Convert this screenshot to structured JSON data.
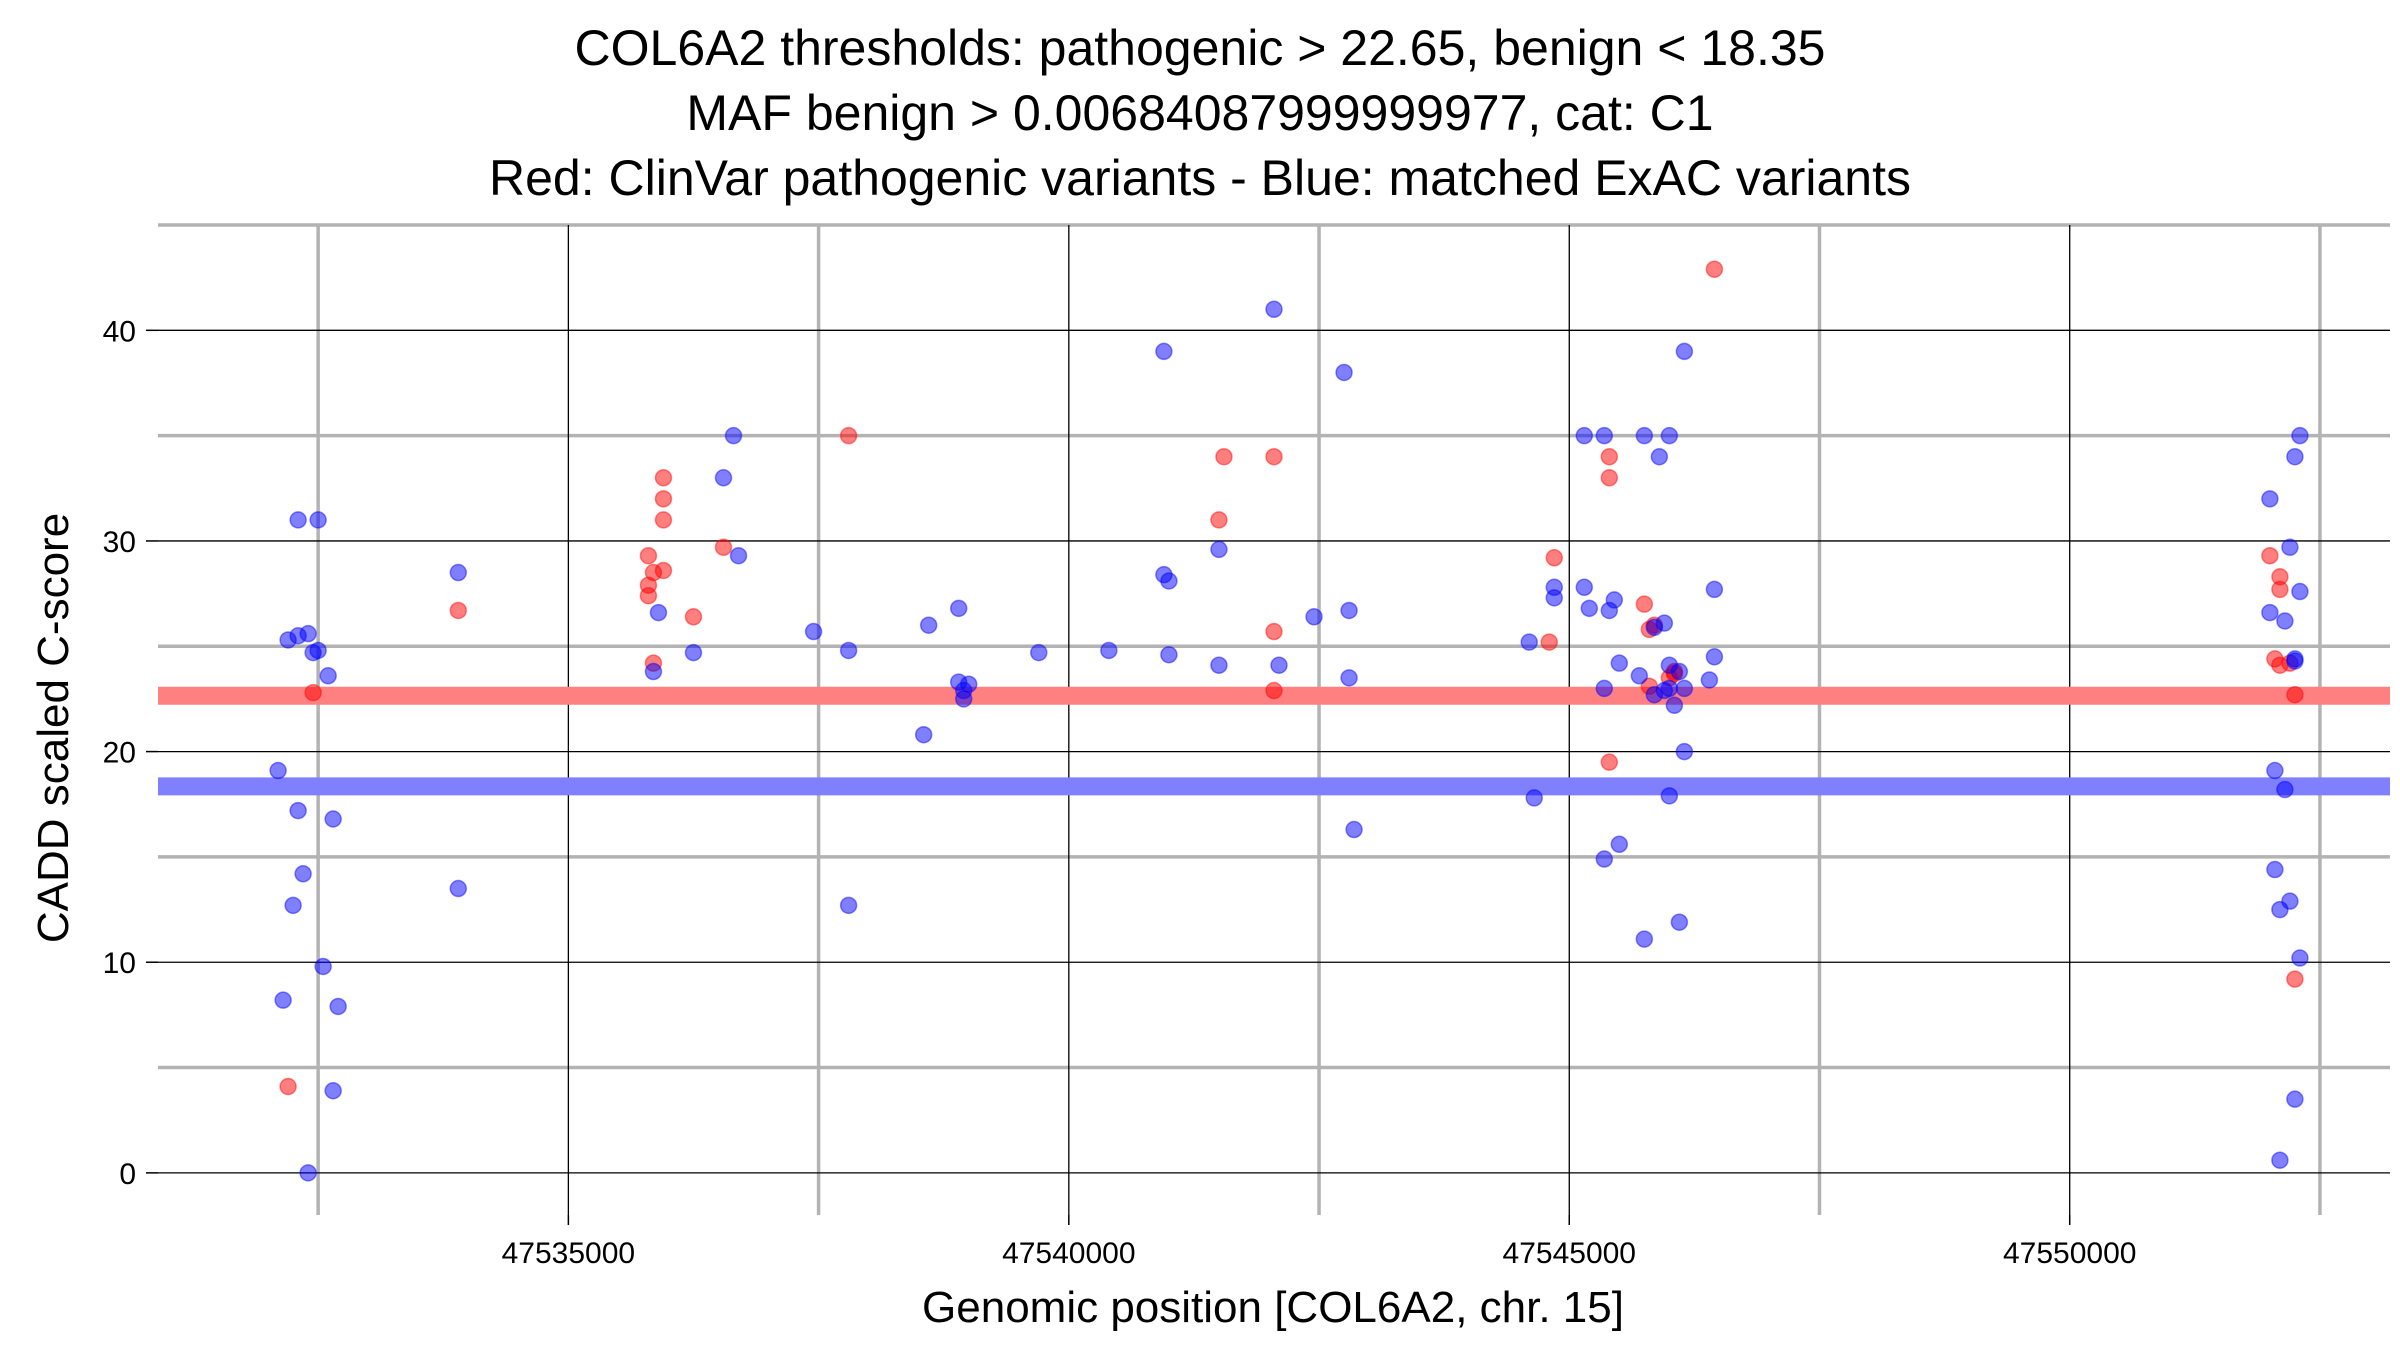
{
  "chart_data": {
    "type": "scatter",
    "title_lines": [
      "COL6A2 thresholds: pathogenic > 22.65, benign < 18.35",
      "MAF benign > 0.00684087999999977, cat: C1",
      "Red: ClinVar pathogenic variants - Blue: matched ExAC variants"
    ],
    "xlabel": "Genomic position [COL6A2, chr. 15]",
    "ylabel": "CADD scaled C-score",
    "xlim": [
      47530900,
      47553200
    ],
    "ylim": [
      -2,
      45
    ],
    "x_ticks": [
      47535000,
      47540000,
      47545000,
      47550000
    ],
    "x_tick_labels": [
      "47535000",
      "47540000",
      "47545000",
      "47550000"
    ],
    "y_ticks": [
      0,
      10,
      20,
      30,
      40
    ],
    "y_tick_labels": [
      "0",
      "10",
      "20",
      "30",
      "40"
    ],
    "x_minor_gridlines": [
      47532500,
      47537500,
      47542500,
      47547500,
      47552500
    ],
    "y_minor_gridlines": [
      5,
      15,
      25,
      35,
      45
    ],
    "thresholds": [
      {
        "name": "pathogenic",
        "value": 22.65,
        "color": "#ff8080"
      },
      {
        "name": "benign",
        "value": 18.35,
        "color": "#8080ff"
      }
    ],
    "series": [
      {
        "name": "ClinVar pathogenic variants",
        "color": "#ff0000",
        "points": [
          [
            47532200,
            4.1
          ],
          [
            47532450,
            22.8
          ],
          [
            47533900,
            26.7
          ],
          [
            47535800,
            29.3
          ],
          [
            47535800,
            27.9
          ],
          [
            47535800,
            27.4
          ],
          [
            47535850,
            28.5
          ],
          [
            47535850,
            24.2
          ],
          [
            47535950,
            28.6
          ],
          [
            47535950,
            33
          ],
          [
            47535950,
            32
          ],
          [
            47535950,
            31
          ],
          [
            47536250,
            26.4
          ],
          [
            47536550,
            29.7
          ],
          [
            47537800,
            35
          ],
          [
            47541500,
            31
          ],
          [
            47541550,
            34
          ],
          [
            47542050,
            34
          ],
          [
            47542050,
            25.7
          ],
          [
            47542050,
            22.9
          ],
          [
            47544850,
            29.2
          ],
          [
            47544800,
            25.2
          ],
          [
            47545400,
            34
          ],
          [
            47545400,
            33
          ],
          [
            47545400,
            19.5
          ],
          [
            47545750,
            27
          ],
          [
            47545800,
            25.8
          ],
          [
            47545850,
            26
          ],
          [
            47545800,
            23.1
          ],
          [
            47546000,
            23.5
          ],
          [
            47546050,
            23.7
          ],
          [
            47546050,
            23.8
          ],
          [
            47546450,
            42.9
          ],
          [
            47552000,
            29.3
          ],
          [
            47552050,
            24.4
          ],
          [
            47552100,
            28.3
          ],
          [
            47552100,
            27.7
          ],
          [
            47552100,
            24.1
          ],
          [
            47552200,
            24.2
          ],
          [
            47552250,
            22.7
          ],
          [
            47552250,
            9.2
          ]
        ]
      },
      {
        "name": "matched ExAC variants",
        "color": "#0000ff",
        "points": [
          [
            47532100,
            19.1
          ],
          [
            47532150,
            8.2
          ],
          [
            47532200,
            25.3
          ],
          [
            47532250,
            12.7
          ],
          [
            47532300,
            25.5
          ],
          [
            47532300,
            17.2
          ],
          [
            47532300,
            31
          ],
          [
            47532350,
            14.2
          ],
          [
            47532400,
            25.6
          ],
          [
            47532400,
            0
          ],
          [
            47532450,
            24.7
          ],
          [
            47532500,
            24.8
          ],
          [
            47532500,
            31
          ],
          [
            47532550,
            9.8
          ],
          [
            47532600,
            23.6
          ],
          [
            47532650,
            16.8
          ],
          [
            47532650,
            3.9
          ],
          [
            47532700,
            7.9
          ],
          [
            47533900,
            28.5
          ],
          [
            47533900,
            13.5
          ],
          [
            47535850,
            23.8
          ],
          [
            47535900,
            26.6
          ],
          [
            47536250,
            24.7
          ],
          [
            47536550,
            33
          ],
          [
            47536650,
            35
          ],
          [
            47536700,
            29.3
          ],
          [
            47537450,
            25.7
          ],
          [
            47537800,
            24.8
          ],
          [
            47537800,
            12.7
          ],
          [
            47538550,
            20.8
          ],
          [
            47538600,
            26
          ],
          [
            47538900,
            26.8
          ],
          [
            47538900,
            23.3
          ],
          [
            47538950,
            22.9
          ],
          [
            47538950,
            22.5
          ],
          [
            47539000,
            23.2
          ],
          [
            47539700,
            24.7
          ],
          [
            47540400,
            24.8
          ],
          [
            47540950,
            39
          ],
          [
            47540950,
            28.4
          ],
          [
            47541000,
            28.1
          ],
          [
            47541000,
            24.6
          ],
          [
            47541500,
            29.6
          ],
          [
            47541500,
            24.1
          ],
          [
            47542050,
            41
          ],
          [
            47542100,
            24.1
          ],
          [
            47542450,
            26.4
          ],
          [
            47542750,
            38
          ],
          [
            47542800,
            26.7
          ],
          [
            47542800,
            23.5
          ],
          [
            47542850,
            16.3
          ],
          [
            47544600,
            25.2
          ],
          [
            47544650,
            17.8
          ],
          [
            47544850,
            27.8
          ],
          [
            47544850,
            27.3
          ],
          [
            47545150,
            35
          ],
          [
            47545150,
            27.8
          ],
          [
            47545200,
            26.8
          ],
          [
            47545350,
            35
          ],
          [
            47545350,
            23
          ],
          [
            47545350,
            14.9
          ],
          [
            47545400,
            26.7
          ],
          [
            47545450,
            27.2
          ],
          [
            47545500,
            24.2
          ],
          [
            47545500,
            15.6
          ],
          [
            47545700,
            23.6
          ],
          [
            47545750,
            35
          ],
          [
            47545750,
            11.1
          ],
          [
            47545850,
            25.9
          ],
          [
            47545850,
            22.7
          ],
          [
            47545900,
            34
          ],
          [
            47545950,
            22.9
          ],
          [
            47545950,
            26.1
          ],
          [
            47546000,
            35
          ],
          [
            47546000,
            24.1
          ],
          [
            47546000,
            23
          ],
          [
            47546000,
            17.9
          ],
          [
            47546050,
            22.2
          ],
          [
            47546100,
            23.8
          ],
          [
            47546100,
            11.9
          ],
          [
            47546150,
            39
          ],
          [
            47546150,
            20
          ],
          [
            47546150,
            23
          ],
          [
            47546400,
            23.4
          ],
          [
            47546450,
            27.7
          ],
          [
            47546450,
            24.5
          ],
          [
            47552000,
            26.6
          ],
          [
            47552000,
            32
          ],
          [
            47552050,
            19.1
          ],
          [
            47552050,
            14.4
          ],
          [
            47552100,
            12.5
          ],
          [
            47552100,
            0.6
          ],
          [
            47552150,
            18.2
          ],
          [
            47552150,
            26.2
          ],
          [
            47552200,
            12.9
          ],
          [
            47552200,
            29.7
          ],
          [
            47552250,
            34
          ],
          [
            47552250,
            24.4
          ],
          [
            47552250,
            24.3
          ],
          [
            47552250,
            3.5
          ],
          [
            47552300,
            35
          ],
          [
            47552300,
            27.6
          ],
          [
            47552300,
            10.2
          ]
        ]
      }
    ]
  }
}
